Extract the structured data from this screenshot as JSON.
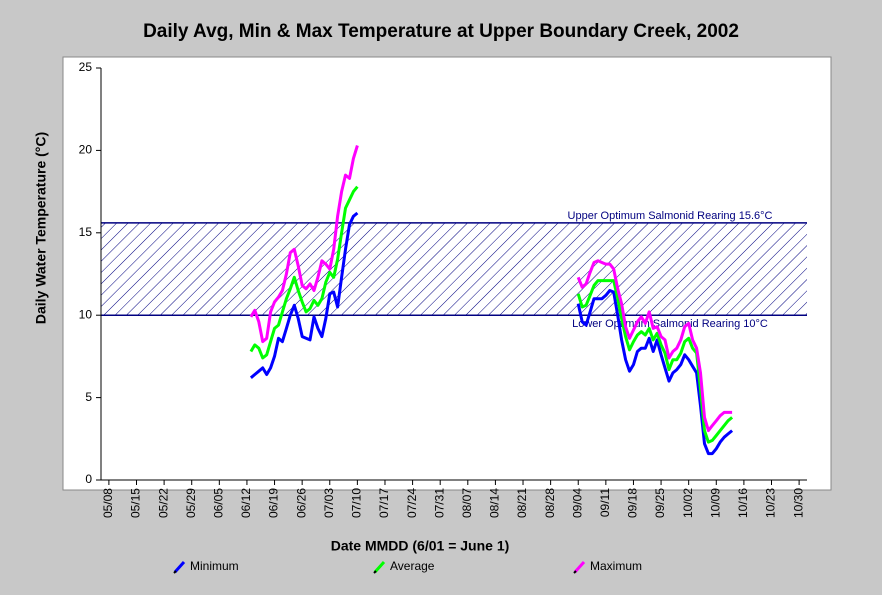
{
  "chart_data": {
    "type": "line",
    "title": "Daily Avg, Min & Max Temperature at Upper Boundary Creek, 2002",
    "xlabel": "Date MMDD (6/01 = June 1)",
    "ylabel": "Daily Water Temperature (°C)",
    "x": [
      "06/13",
      "06/14",
      "06/15",
      "06/16",
      "06/17",
      "06/18",
      "06/19",
      "06/20",
      "06/21",
      "06/22",
      "06/23",
      "06/24",
      "06/25",
      "06/26",
      "06/27",
      "06/28",
      "06/29",
      "06/30",
      "07/01",
      "07/02",
      "07/03",
      "07/04",
      "07/05",
      "07/06",
      "07/07",
      "07/08",
      "07/09",
      "07/10",
      "08/01",
      "09/04",
      "09/05",
      "09/06",
      "09/07",
      "09/08",
      "09/09",
      "09/10",
      "09/11",
      "09/12",
      "09/13",
      "09/14",
      "09/15",
      "09/16",
      "09/17",
      "09/18",
      "09/19",
      "09/20",
      "09/21",
      "09/22",
      "09/23",
      "09/24",
      "09/25",
      "09/26",
      "09/27",
      "09/28",
      "09/29",
      "09/30",
      "10/01",
      "10/02",
      "10/03",
      "10/04",
      "10/05",
      "10/06",
      "10/07",
      "10/08",
      "10/09",
      "10/10",
      "10/11",
      "10/12",
      "10/13"
    ],
    "series": [
      {
        "name": "Minimum",
        "color": "#0000ff",
        "values": [
          6.2,
          6.4,
          6.6,
          6.8,
          6.4,
          6.8,
          7.5,
          8.6,
          8.4,
          9.2,
          10.0,
          10.6,
          9.8,
          8.7,
          8.6,
          8.5,
          9.9,
          9.2,
          8.7,
          9.8,
          11.3,
          11.4,
          10.5,
          12.3,
          14.0,
          15.5,
          16.0,
          16.2,
          null,
          10.7,
          9.6,
          9.4,
          10.2,
          11.0,
          11.0,
          11.0,
          11.2,
          11.5,
          11.4,
          10.0,
          8.5,
          7.3,
          6.6,
          7.0,
          7.8,
          8.0,
          8.0,
          8.6,
          7.8,
          8.5,
          7.6,
          6.8,
          6.0,
          6.5,
          6.7,
          7.0,
          7.6,
          7.3,
          6.9,
          6.5,
          4.5,
          2.2,
          1.6,
          1.6,
          1.9,
          2.3,
          2.6,
          2.8,
          3.0
        ]
      },
      {
        "name": "Average",
        "color": "#00ff00",
        "values": [
          7.8,
          8.2,
          8.0,
          7.4,
          7.6,
          8.4,
          9.2,
          9.4,
          10.2,
          11.0,
          11.6,
          12.3,
          11.5,
          10.8,
          10.2,
          10.4,
          10.9,
          10.6,
          11.0,
          12.0,
          12.6,
          12.3,
          13.4,
          15.0,
          16.5,
          17.0,
          17.5,
          17.8,
          null,
          11.3,
          10.5,
          10.6,
          11.2,
          11.8,
          12.1,
          12.1,
          12.1,
          12.1,
          12.1,
          11.0,
          9.8,
          8.7,
          7.9,
          8.4,
          8.8,
          9.0,
          8.8,
          9.2,
          8.5,
          8.9,
          8.2,
          7.7,
          6.7,
          7.3,
          7.3,
          7.7,
          8.4,
          8.6,
          8.0,
          7.7,
          5.5,
          3.0,
          2.3,
          2.4,
          2.7,
          3.0,
          3.3,
          3.6,
          3.8
        ]
      },
      {
        "name": "Maximum",
        "color": "#ff00ff",
        "values": [
          9.9,
          10.3,
          9.6,
          8.4,
          8.6,
          10.2,
          10.8,
          11.1,
          11.5,
          12.5,
          13.8,
          14.0,
          13.0,
          11.8,
          11.6,
          11.9,
          11.5,
          12.3,
          13.3,
          13.1,
          12.8,
          14.0,
          16.0,
          17.5,
          18.5,
          18.3,
          19.5,
          20.3,
          null,
          12.3,
          11.7,
          11.9,
          12.6,
          13.2,
          13.3,
          13.2,
          13.1,
          13.1,
          12.8,
          11.6,
          10.7,
          9.3,
          8.6,
          9.1,
          9.6,
          9.9,
          9.5,
          10.2,
          9.2,
          9.3,
          8.7,
          8.5,
          7.4,
          7.8,
          8.0,
          8.5,
          9.3,
          9.5,
          8.5,
          8.0,
          6.5,
          3.8,
          3.0,
          3.3,
          3.6,
          3.9,
          4.1,
          4.1,
          4.1
        ]
      }
    ],
    "reference_lines": [
      {
        "value": 15.6,
        "label": "Upper Optimum Salmonid Rearing 15.6°C",
        "color": "#000080"
      },
      {
        "value": 10,
        "label": "Lower Optimum Salmonid Rearing 10°C",
        "color": "#000080"
      }
    ],
    "xlim": [
      "05/06",
      "11/01"
    ],
    "xticks": [
      "05/08",
      "05/15",
      "05/22",
      "05/29",
      "06/05",
      "06/12",
      "06/19",
      "06/26",
      "07/03",
      "07/10",
      "07/17",
      "07/24",
      "07/31",
      "08/07",
      "08/14",
      "08/21",
      "08/28",
      "09/04",
      "09/11",
      "09/18",
      "09/25",
      "10/02",
      "10/09",
      "10/16",
      "10/23",
      "10/30"
    ],
    "ylim": [
      0,
      25
    ],
    "yticks": [
      0,
      5,
      10,
      15,
      20,
      25
    ]
  }
}
